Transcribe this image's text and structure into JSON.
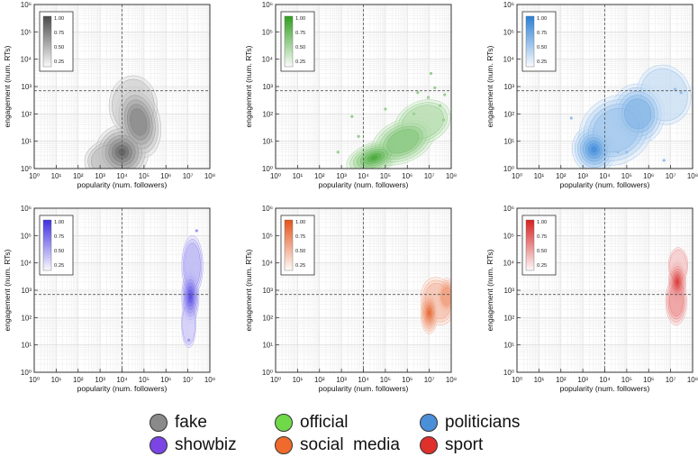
{
  "chart_data": [
    {
      "type": "heatmap",
      "category": "fake",
      "color": "#4a4a4a",
      "xlabel": "popularity (num. followers)",
      "ylabel": "engagement (num. RTs)",
      "xlim": [
        1,
        100000000
      ],
      "ylim": [
        1,
        1000000
      ],
      "log_x": true,
      "log_y": true,
      "thresholds": {
        "x": 10000,
        "y": 700
      },
      "colorbar": {
        "ticks": [
          "1.00",
          "0.75",
          "0.50",
          "0.25"
        ]
      },
      "density_blobs": [
        {
          "x": 10000,
          "y": 4,
          "sx": 0.55,
          "sy": 0.45,
          "rot": -0.2,
          "w": 1.0
        },
        {
          "x": 56000,
          "y": 50,
          "sx": 0.45,
          "sy": 0.6,
          "rot": 0.2,
          "w": 0.7
        },
        {
          "x": 3200,
          "y": 2,
          "sx": 0.55,
          "sy": 0.35,
          "rot": 0.1,
          "w": 0.35
        },
        {
          "x": 32000,
          "y": 200,
          "sx": 0.5,
          "sy": 0.5,
          "rot": 0.0,
          "w": 0.3
        }
      ]
    },
    {
      "type": "heatmap",
      "category": "official",
      "color": "#2f9e1e",
      "xlabel": "popularity (num. followers)",
      "ylabel": "engagement (num. RTs)",
      "xlim": [
        1,
        100000000
      ],
      "ylim": [
        1,
        1000000
      ],
      "log_x": true,
      "log_y": true,
      "thresholds": {
        "x": 10000,
        "y": 700
      },
      "colorbar": {
        "ticks": [
          "1.00",
          "0.75",
          "0.50",
          "0.25"
        ]
      },
      "density_blobs": [
        {
          "x": 31000,
          "y": 2.5,
          "sx": 0.6,
          "sy": 0.25,
          "rot": 0.35,
          "w": 1.0
        },
        {
          "x": 630000,
          "y": 10,
          "sx": 0.7,
          "sy": 0.35,
          "rot": 0.45,
          "w": 0.6
        },
        {
          "x": 5000000,
          "y": 50,
          "sx": 0.6,
          "sy": 0.35,
          "rot": 0.4,
          "w": 0.35
        }
      ],
      "points": [
        [
          3000,
          80
        ],
        [
          18000000,
          900
        ],
        [
          6000,
          15
        ],
        [
          9000000,
          400
        ],
        [
          31000000,
          200
        ],
        [
          50000000,
          500
        ],
        [
          2000000,
          100
        ],
        [
          700,
          4
        ],
        [
          45000000,
          60
        ],
        [
          3000000,
          600
        ],
        [
          12000000,
          3000
        ],
        [
          100000,
          150
        ]
      ]
    },
    {
      "type": "heatmap",
      "category": "politicians",
      "color": "#2a7fd4",
      "xlabel": "popularity (num. followers)",
      "ylabel": "engagement (num. RTs)",
      "xlim": [
        1,
        100000000
      ],
      "ylim": [
        1,
        1000000
      ],
      "log_x": true,
      "log_y": true,
      "thresholds": {
        "x": 10000,
        "y": 700
      },
      "colorbar": {
        "ticks": [
          "1.00",
          "0.75",
          "0.50",
          "0.25"
        ]
      },
      "density_blobs": [
        {
          "x": 3200,
          "y": 5,
          "sx": 0.45,
          "sy": 0.4,
          "rot": 0.2,
          "w": 1.0
        },
        {
          "x": 320000,
          "y": 100,
          "sx": 0.55,
          "sy": 0.5,
          "rot": 0.1,
          "w": 0.6
        },
        {
          "x": 32000,
          "y": 25,
          "sx": 0.8,
          "sy": 0.55,
          "rot": 0.6,
          "w": 0.45
        },
        {
          "x": 5000000,
          "y": 500,
          "sx": 0.55,
          "sy": 0.5,
          "rot": 0.3,
          "w": 0.25
        }
      ],
      "points": [
        [
          300,
          70
        ],
        [
          40000,
          4
        ],
        [
          100000,
          4
        ],
        [
          5000000,
          2
        ],
        [
          30000000,
          600
        ],
        [
          16000000,
          800
        ]
      ]
    },
    {
      "type": "heatmap",
      "category": "showbiz",
      "color": "#3f2fe0",
      "xlabel": "popularity (num. followers)",
      "ylabel": "engagement (num. RTs)",
      "xlim": [
        1,
        100000000
      ],
      "ylim": [
        1,
        1000000
      ],
      "log_x": true,
      "log_y": true,
      "thresholds": {
        "x": 10000,
        "y": 700
      },
      "colorbar": {
        "ticks": [
          "1.00",
          "0.75",
          "0.50",
          "0.25"
        ]
      },
      "density_blobs": [
        {
          "x": 13000000,
          "y": 600,
          "sx": 0.18,
          "sy": 0.45,
          "rot": 0.0,
          "w": 1.0
        },
        {
          "x": 16000000,
          "y": 8000,
          "sx": 0.22,
          "sy": 0.5,
          "rot": 0.0,
          "w": 0.35
        },
        {
          "x": 11000000,
          "y": 60,
          "sx": 0.15,
          "sy": 0.4,
          "rot": 0.0,
          "w": 0.3
        }
      ],
      "points": [
        [
          25000000,
          150000
        ],
        [
          11000000,
          15
        ]
      ]
    },
    {
      "type": "heatmap",
      "category": "social media",
      "color": "#e3541a",
      "xlabel": "popularity (num. followers)",
      "ylabel": "engagement (num. RTs)",
      "xlim": [
        1,
        100000000
      ],
      "ylim": [
        1,
        1000000
      ],
      "log_x": true,
      "log_y": true,
      "thresholds": {
        "x": 10000,
        "y": 700
      },
      "colorbar": {
        "ticks": [
          "1.00",
          "0.75",
          "0.50",
          "0.25"
        ]
      },
      "density_blobs": [
        {
          "x": 10000000,
          "y": 150,
          "sx": 0.18,
          "sy": 0.35,
          "rot": 0.0,
          "w": 1.0
        },
        {
          "x": 63000000,
          "y": 600,
          "sx": 0.2,
          "sy": 0.3,
          "rot": 0.0,
          "w": 0.6
        },
        {
          "x": 25000000,
          "y": 400,
          "sx": 0.35,
          "sy": 0.4,
          "rot": 0.2,
          "w": 0.35
        }
      ]
    },
    {
      "type": "heatmap",
      "category": "sport",
      "color": "#d62020",
      "xlabel": "popularity (num. followers)",
      "ylabel": "engagement (num. RTs)",
      "xlim": [
        1,
        100000000
      ],
      "ylim": [
        1,
        1000000
      ],
      "log_x": true,
      "log_y": true,
      "thresholds": {
        "x": 10000,
        "y": 700
      },
      "colorbar": {
        "ticks": [
          "1.00",
          "0.75",
          "0.50",
          "0.25"
        ]
      },
      "density_blobs": [
        {
          "x": 20000000,
          "y": 2000,
          "sx": 0.18,
          "sy": 0.35,
          "rot": 0.0,
          "w": 1.0
        },
        {
          "x": 18000000,
          "y": 400,
          "sx": 0.22,
          "sy": 0.4,
          "rot": 0.0,
          "w": 0.45
        },
        {
          "x": 22000000,
          "y": 8000,
          "sx": 0.2,
          "sy": 0.3,
          "rot": 0.0,
          "w": 0.3
        }
      ]
    }
  ],
  "legend": {
    "items": [
      {
        "label": "fake",
        "color": "#8a8a8a"
      },
      {
        "label": "official",
        "color": "#6fd94a"
      },
      {
        "label": "politicians",
        "color": "#4a8fd8"
      },
      {
        "label": "showbiz",
        "color": "#7b45e6"
      },
      {
        "label": "social  media",
        "color": "#ef6a2c"
      },
      {
        "label": "sport",
        "color": "#e0302c"
      }
    ]
  }
}
